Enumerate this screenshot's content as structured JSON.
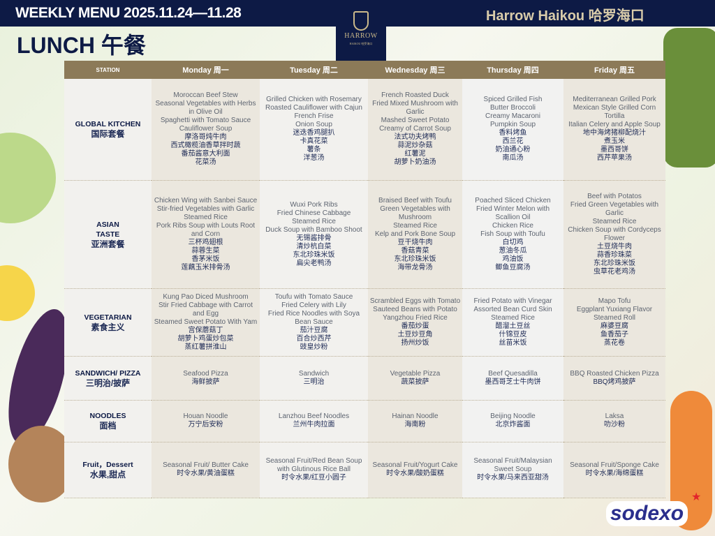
{
  "header": {
    "title": "WEEKLY MENU 2025.11.24—11.28",
    "brand": "Harrow Haikou 哈罗海口",
    "meal": "LUNCH 午餐",
    "logo_text": "HARROW",
    "logo_sub": "HAIKOU 哈罗海口"
  },
  "colors": {
    "navy": "#0d1a45",
    "header_bg": "#8c7a58",
    "gold": "#d9ccaa"
  },
  "columns": [
    "STATION",
    "Monday 周一",
    "Tuesday 周二",
    "Wednesday 周三",
    "Thursday 周四",
    "Friday 周五"
  ],
  "rows": [
    {
      "station": [
        "GLOBAL KITCHEN"
      ],
      "station_zh": "国际套餐",
      "cells": [
        {
          "en": [
            "Moroccan Beef Stew",
            "Seasonal Vegetables with Herbs in Olive Oil",
            "Spaghetti with Tomato Sauce",
            "Cauliflower Soup"
          ],
          "zh": [
            "摩洛哥炖牛肉",
            "西式橄榄油香草拌时蔬",
            "番茄酱意大利面",
            "花菜汤"
          ]
        },
        {
          "en": [
            "Grilled  Chicken with Rosemary",
            "Roasted Cauliflower with Cajun",
            "French Frise",
            "Onion Soup"
          ],
          "zh": [
            "迷迭香鸡腿扒",
            "卡真花菜",
            "薯条",
            "洋葱汤"
          ]
        },
        {
          "en": [
            "French Roasted Duck",
            "Fried Mixed Mushroom with Garlic",
            "Mashed Sweet Potato",
            "Creamy of Carrot Soup"
          ],
          "zh": [
            "法式功夫烤鸭",
            "蒜泥炒杂菇",
            "红薯泥",
            "胡萝卜奶油汤"
          ]
        },
        {
          "en": [
            "Spiced Grilled Fish",
            "Butter Broccoli",
            "Creamy Macaroni",
            "Pumpkin Soup"
          ],
          "zh": [
            "香料烤鱼",
            "西兰花",
            "奶油通心粉",
            "南瓜汤"
          ]
        },
        {
          "en": [
            "Mediterranean Grilled Pork",
            "Mexican Style Grilled Corn Tortilla",
            "Italian Celery and Apple Soup"
          ],
          "zh": [
            "地中海烤猪柳配烧汁",
            "煮玉米",
            "墨西哥饼",
            "西芹苹果汤"
          ]
        }
      ]
    },
    {
      "station": [
        "ASIAN",
        "TASTE"
      ],
      "station_zh": "亚洲套餐",
      "cells": [
        {
          "en": [
            "Chicken Wing with Sanbei Sauce",
            "Stir-fried Vegetables with Garlic",
            "Steamed Rice",
            "Pork Ribs Soup with Louts Root and Corn"
          ],
          "zh": [
            "三杯鸡翅根",
            "蒜蓉生菜",
            "香茅米饭",
            "莲藕玉米排骨汤"
          ]
        },
        {
          "en": [
            "Wuxi Pork Ribs",
            "Fried Chinese Cabbage",
            "Steamed Rice",
            "Duck Soup with Bamboo Shoot"
          ],
          "zh": [
            "无锡酱排骨",
            "清炒杭白菜",
            "东北珍珠米饭",
            "扁尖老鸭汤"
          ]
        },
        {
          "en": [
            "Braised Beef with Toufu",
            "Green Vegetables with Mushroom",
            "Steamed Rice",
            "Kelp and Pork Bone Soup"
          ],
          "zh": [
            "豆干烧牛肉",
            "香菇青菜",
            "东北珍珠米饭",
            "海带龙骨汤"
          ]
        },
        {
          "en": [
            "Poached Sliced Chicken",
            "Fried Winter Melon with Scallion Oil",
            "Chicken Rice",
            "Fish Soup with Toufu"
          ],
          "zh": [
            "白切鸡",
            "葱油冬瓜",
            "鸡油饭",
            "鲫鱼豆腐汤"
          ]
        },
        {
          "en": [
            "Beef with Potatos",
            "Fried Green Vegetables with Garlic",
            "Steamed Rice",
            "Chicken Soup with Cordyceps Flower"
          ],
          "zh": [
            "土豆烧牛肉",
            "蒜香珍珠菜",
            "东北珍珠米饭",
            "虫草花老鸡汤"
          ]
        }
      ]
    },
    {
      "station": [
        "VEGETARIAN"
      ],
      "station_zh": "素食主义",
      "cells": [
        {
          "en": [
            "Kung Pao Diced Mushroom",
            "Stir Fried Cabbage with Carrot and Egg",
            "Steamed Sweet Potato With  Yam"
          ],
          "zh": [
            "宫保蘑菇丁",
            "胡萝卜鸡蛋炒包菜",
            "蒸红薯拼淮山"
          ]
        },
        {
          "en": [
            "Toufu with Tomato Sauce",
            "Fried Celery with Lily",
            "Fried Rice Noodles with Soya Bean Sauce"
          ],
          "zh": [
            "茄汁豆腐",
            "百合炒西芹",
            "豉皇炒粉"
          ]
        },
        {
          "en": [
            "Scrambled Eggs with Tomato",
            "Sauteed Beans with Potato",
            "Yangzhou Fried Rice"
          ],
          "zh": [
            "番茄炒蛋",
            "土豆炒豆角",
            "扬州炒饭"
          ]
        },
        {
          "en": [
            "Fried Potato with Vinegar",
            "Assorted Bean Curd Skin",
            "Steamed Rice"
          ],
          "zh": [
            "醋溜土豆丝",
            "什锦豆皮",
            "丝苗米饭"
          ]
        },
        {
          "en": [
            "Mapo Tofu",
            "Eggplant Yuxiang Flavor",
            "Steamed Roll"
          ],
          "zh": [
            "麻婆豆腐",
            "鱼香茄子",
            "蒸花卷"
          ]
        }
      ]
    },
    {
      "station": [
        "SANDWICH/ PIZZA"
      ],
      "station_zh": "三明治/披萨",
      "cells": [
        {
          "en": [
            "Seafood Pizza"
          ],
          "zh": [
            "海鲜披萨"
          ]
        },
        {
          "en": [
            "Sandwich"
          ],
          "zh": [
            "三明治"
          ]
        },
        {
          "en": [
            "Vegetable Pizza"
          ],
          "zh": [
            "蔬菜披萨"
          ]
        },
        {
          "en": [
            "Beef Quesadilla"
          ],
          "zh": [
            "墨西哥芝士牛肉饼"
          ]
        },
        {
          "en": [
            "BBQ Roasted Chicken Pizza"
          ],
          "zh": [
            "BBQ烤鸡披萨"
          ]
        }
      ]
    },
    {
      "station": [
        "NOODLES"
      ],
      "station_zh": "面档",
      "cells": [
        {
          "en": [
            "Houan Noodle"
          ],
          "zh": [
            "万宁后安粉"
          ]
        },
        {
          "en": [
            "Lanzhou Beef Noodles"
          ],
          "zh": [
            "兰州牛肉拉面"
          ]
        },
        {
          "en": [
            "Hainan Noodle"
          ],
          "zh": [
            "海南粉"
          ]
        },
        {
          "en": [
            "Beijing Noodle"
          ],
          "zh": [
            "北京炸酱面"
          ]
        },
        {
          "en": [
            "Laksa"
          ],
          "zh": [
            "叻沙粉"
          ]
        }
      ]
    },
    {
      "station": [
        "Fruit，Dessert"
      ],
      "station_zh": "水果,甜点",
      "cells": [
        {
          "en": [
            "Seasonal Fruit/ Butter Cake"
          ],
          "zh": [
            "时令水果/黄油蛋糕"
          ]
        },
        {
          "en": [
            "Seasonal Fruit/Red Bean Soup with Glutinous Rice Ball"
          ],
          "zh": [
            "时令水果/红豆小圆子"
          ]
        },
        {
          "en": [
            "Seasonal Fruit/Yogurt Cake"
          ],
          "zh": [
            "时令水果/酸奶蛋糕"
          ]
        },
        {
          "en": [
            "Seasonal Fruit/Malaysian Sweet Soup"
          ],
          "zh": [
            "时令水果/马来西亚甜汤"
          ]
        },
        {
          "en": [
            "Seasonal Fruit/Sponge Cake"
          ],
          "zh": [
            "时令水果/海绵蛋糕"
          ]
        }
      ]
    }
  ],
  "footer": {
    "sodexo": "sodexo"
  }
}
